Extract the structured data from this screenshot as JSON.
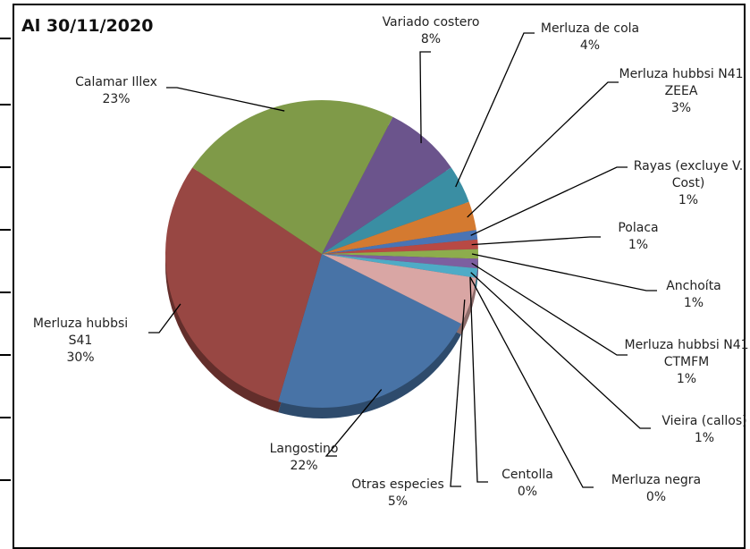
{
  "chart_data": {
    "type": "pie",
    "title": "Al 30/11/2020",
    "categories": [
      "Variado costero",
      "Merluza de cola",
      "Merluza hubbsi N41 ZEEA",
      "Rayas (excluye V. Cost)",
      "Polaca",
      "Anchoíta",
      "Merluza hubbsi N41 CTMFM",
      "Vieira (callos)",
      "Merluza negra",
      "Centolla",
      "Otras especies",
      "Langostino",
      "Merluza hubbsi S41",
      "Calamar Illex"
    ],
    "values": [
      8,
      4,
      3,
      1,
      1,
      1,
      1,
      1,
      0,
      0,
      5,
      22,
      30,
      23
    ],
    "value_labels": [
      "8%",
      "4%",
      "3%",
      "1%",
      "1%",
      "1%",
      "1%",
      "1%",
      "0%",
      "0%",
      "5%",
      "22%",
      "30%",
      "23%"
    ],
    "colors": [
      "#6b548c",
      "#3a8ea3",
      "#d47a30",
      "#4a74b4",
      "#b84944",
      "#8dad4c",
      "#7d5fa0",
      "#4eabc6",
      "#f0a04b",
      "#a6b8d8",
      "#d9a6a4",
      "#4873a6",
      "#984743",
      "#7f9a48"
    ]
  }
}
